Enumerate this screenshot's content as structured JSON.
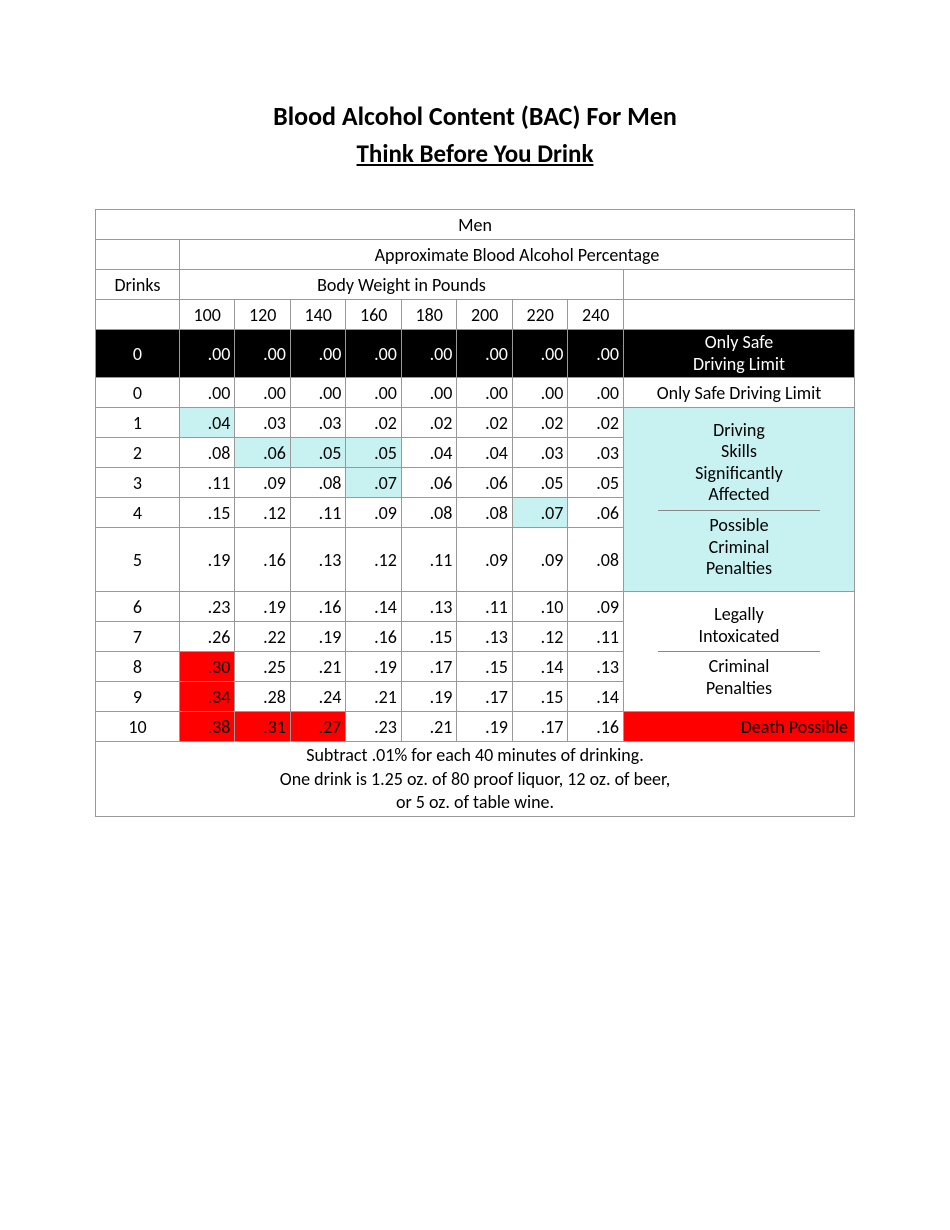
{
  "titles": {
    "main": "Blood Alcohol Content (BAC) For Men",
    "sub": "Think Before You Drink"
  },
  "table": {
    "header_group": "Men",
    "header_bap": "Approximate Blood Alcohol Percentage",
    "header_drinks": "Drinks",
    "header_bwp": "Body Weight in Pounds",
    "weights": [
      "100",
      "120",
      "140",
      "160",
      "180",
      "200",
      "220",
      "240"
    ],
    "rows_black": {
      "drinks": "0",
      "vals": [
        ".00",
        ".00",
        ".00",
        ".00",
        ".00",
        ".00",
        ".00",
        ".00"
      ],
      "note": "Only Safe\nDriving Limit"
    },
    "rows": [
      {
        "drinks": "0",
        "vals": [
          ".00",
          ".00",
          ".00",
          ".00",
          ".00",
          ".00",
          ".00",
          ".00"
        ]
      },
      {
        "drinks": "1",
        "vals": [
          ".04",
          ".03",
          ".03",
          ".02",
          ".02",
          ".02",
          ".02",
          ".02"
        ]
      },
      {
        "drinks": "2",
        "vals": [
          ".08",
          ".06",
          ".05",
          ".05",
          ".04",
          ".04",
          ".03",
          ".03"
        ]
      },
      {
        "drinks": "3",
        "vals": [
          ".11",
          ".09",
          ".08",
          ".07",
          ".06",
          ".06",
          ".05",
          ".05"
        ]
      },
      {
        "drinks": "4",
        "vals": [
          ".15",
          ".12",
          ".11",
          ".09",
          ".08",
          ".08",
          ".07",
          ".06"
        ]
      },
      {
        "drinks": "5",
        "vals": [
          ".19",
          ".16",
          ".13",
          ".12",
          ".11",
          ".09",
          ".09",
          ".08"
        ]
      },
      {
        "drinks": "6",
        "vals": [
          ".23",
          ".19",
          ".16",
          ".14",
          ".13",
          ".11",
          ".10",
          ".09"
        ]
      },
      {
        "drinks": "7",
        "vals": [
          ".26",
          ".22",
          ".19",
          ".16",
          ".15",
          ".13",
          ".12",
          ".11"
        ]
      },
      {
        "drinks": "8",
        "vals": [
          ".30",
          ".25",
          ".21",
          ".19",
          ".17",
          ".15",
          ".14",
          ".13"
        ]
      },
      {
        "drinks": "9",
        "vals": [
          ".34",
          ".28",
          ".24",
          ".21",
          ".19",
          ".17",
          ".15",
          ".14"
        ]
      },
      {
        "drinks": "10",
        "vals": [
          ".38",
          ".31",
          ".27",
          ".23",
          ".21",
          ".19",
          ".17",
          ".16"
        ]
      }
    ],
    "cell_highlight": {
      "cyan": [
        [
          1,
          0
        ],
        [
          2,
          1
        ],
        [
          2,
          2
        ],
        [
          2,
          3
        ],
        [
          3,
          3
        ],
        [
          4,
          6
        ]
      ],
      "red": [
        [
          8,
          0
        ],
        [
          9,
          0
        ],
        [
          10,
          0
        ],
        [
          10,
          1
        ],
        [
          10,
          2
        ]
      ]
    },
    "notes": {
      "row0": "Only Safe Driving Limit",
      "cyan_block_a": "Driving\nSkills\nSignificantly\nAffected",
      "cyan_block_b": "Possible\nCriminal\nPenalties",
      "white_block_a": "Legally\nIntoxicated",
      "white_block_b": "Criminal\nPenalties",
      "red_block": "Death Possible"
    },
    "footer": "Subtract .01% for each 40 minutes of drinking.\nOne drink is 1.25 oz. of 80 proof liquor, 12 oz. of beer,\nor 5 oz. of table wine."
  },
  "colors": {
    "cyan": "#c8f2f2",
    "red": "#ff0000",
    "black": "#000000",
    "border": "#999999"
  },
  "type": "table"
}
